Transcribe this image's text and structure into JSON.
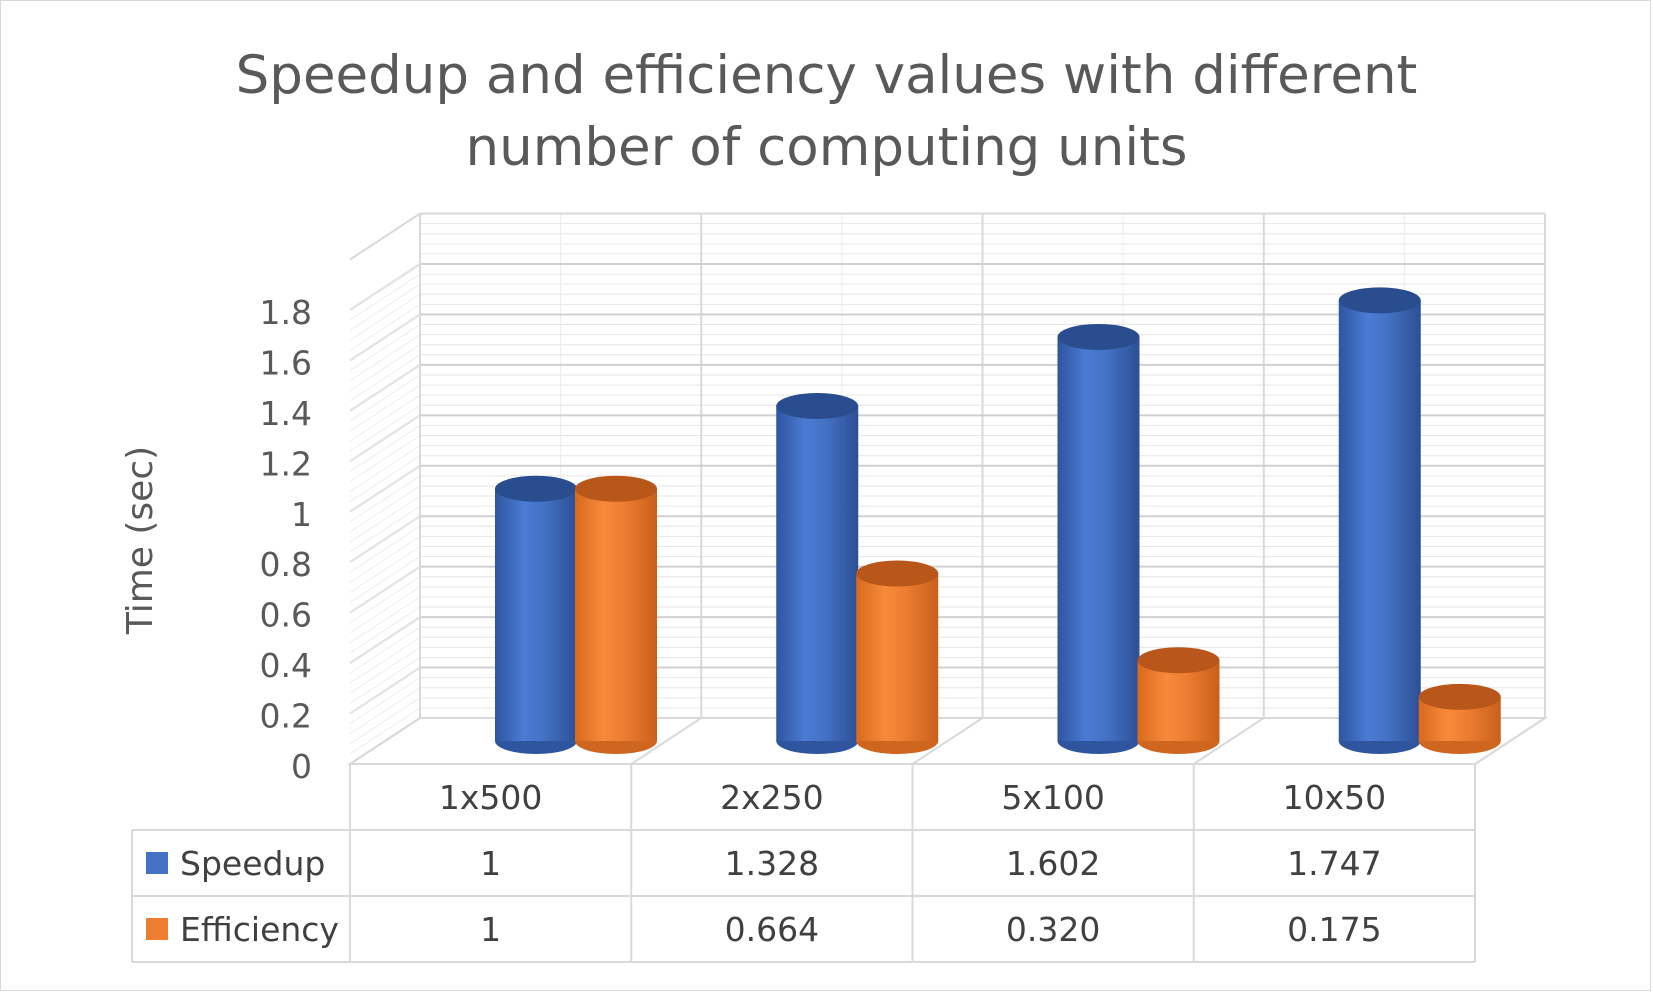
{
  "chart_data": {
    "type": "bar",
    "title_lines": [
      "Speedup and efficiency values with different",
      "number of computing units"
    ],
    "xlabel": "",
    "ylabel": "Time (sec)",
    "ylim": [
      0,
      1.8
    ],
    "yticks": [
      "0",
      "0.2",
      "0.4",
      "0.6",
      "0.8",
      "1",
      "1.2",
      "1.4",
      "1.6",
      "1.8"
    ],
    "categories": [
      "1x500",
      "2x250",
      "5x100",
      "10x50"
    ],
    "series": [
      {
        "name": "Speedup",
        "values": [
          1,
          1.328,
          1.602,
          1.747
        ],
        "table_labels": [
          "1",
          "1.328",
          "1.602",
          "1.747"
        ],
        "color": "#4472c4"
      },
      {
        "name": "Efficiency",
        "values": [
          1,
          0.664,
          0.32,
          0.175
        ],
        "table_labels": [
          "1",
          "0.664",
          "0.320",
          "0.175"
        ],
        "color": "#ed7d31"
      }
    ],
    "bar_shape": "3d-cylinder",
    "grid": true,
    "legend": "data-table"
  }
}
